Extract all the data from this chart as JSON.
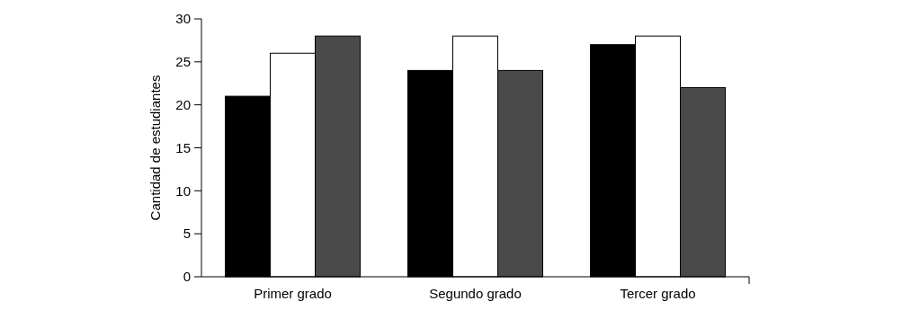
{
  "chart_data": {
    "type": "bar",
    "ylabel": "Cantidad de estudiantes",
    "categories": [
      "Primer grado",
      "Segundo grado",
      "Tercer grado"
    ],
    "series": [
      {
        "color": "#000000",
        "values": [
          21,
          24,
          27
        ]
      },
      {
        "color": "#ffffff",
        "values": [
          26,
          28,
          28
        ]
      },
      {
        "color": "#4a4a4a",
        "values": [
          28,
          24,
          22
        ]
      }
    ],
    "ylim": [
      0,
      30
    ],
    "yticks": [
      0,
      5,
      10,
      15,
      20,
      25,
      30
    ]
  }
}
